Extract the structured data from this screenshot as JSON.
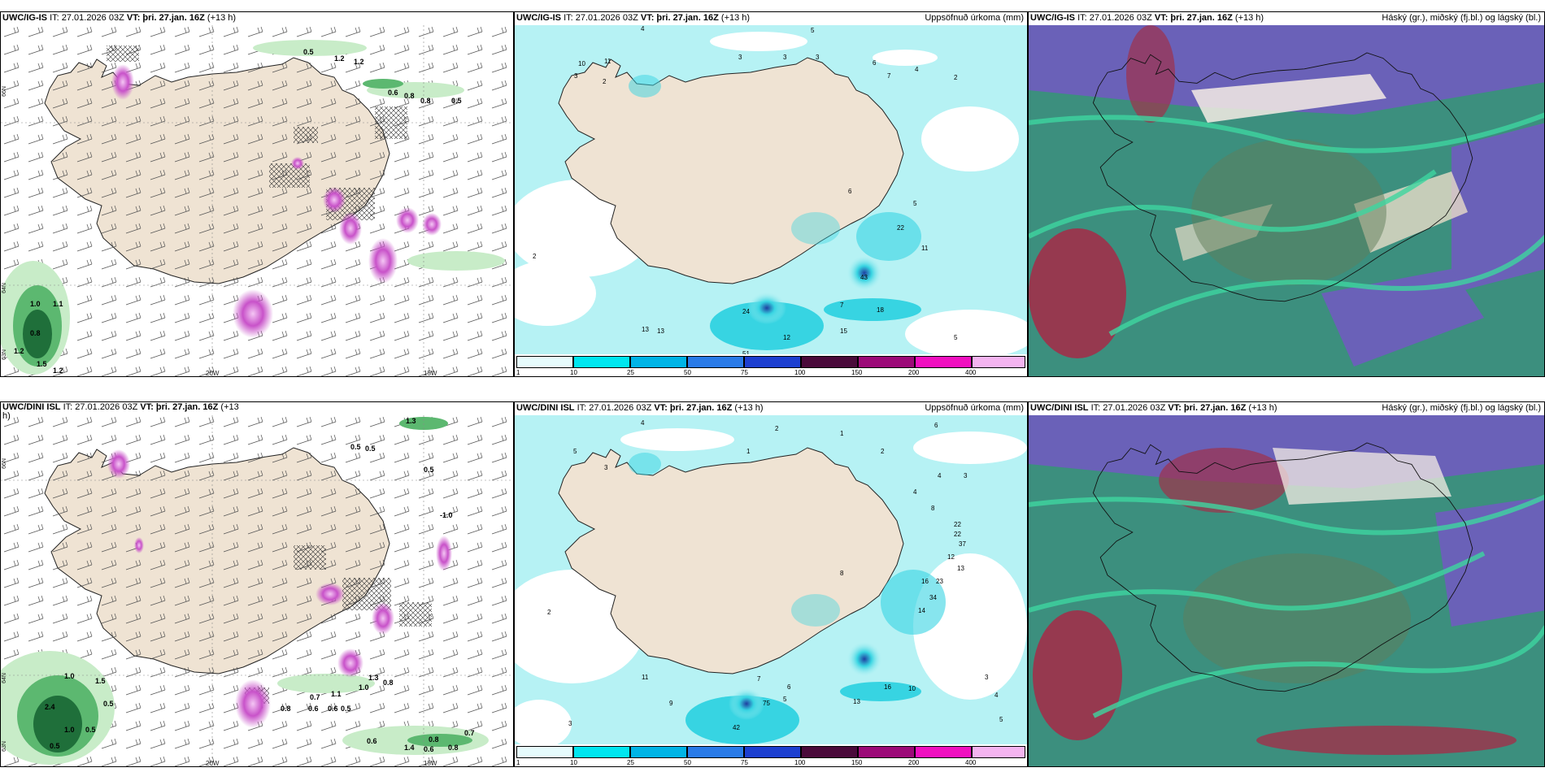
{
  "colors": {
    "land": "#efe3d3",
    "sea_bg": "#ffffff",
    "precip_light": "#b6f2f4",
    "precip_mid": "#37d4e2",
    "precip_purple": "#c852c9",
    "green_light": "#c8ecc8",
    "green_dark": "#1f6f3a",
    "cloud_purple": "#6a61b8",
    "cloud_teal": "#3c8f7e",
    "cloud_red": "#a0304a",
    "cloud_green": "#3ed6a0"
  },
  "axes": {
    "lon_left": "20W",
    "lon_right": "15W",
    "lat_top": "66N",
    "lat_mid": "64N",
    "lat_bottom": "63N"
  },
  "top": {
    "wind": {
      "model": "UWC/IG-IS",
      "it_label": "IT: 27.01.2026 03Z",
      "vt_label": "VT: þri. 27.jan. 16Z",
      "lead": "(+13 h)",
      "values": [
        "0.5",
        "1.2",
        "1.2",
        "0.6",
        "0.8",
        "0.8",
        "0.5",
        "1.0",
        "1.1",
        "0.8",
        "1.2",
        "1.5",
        "1.2"
      ]
    },
    "precip": {
      "model": "UWC/IG-IS",
      "it_label": "IT: 27.01.2026 03Z",
      "vt_label": "VT: þri. 27.jan. 16Z",
      "lead": "(+13 h)",
      "title": "Uppsöfnuð úrkoma (mm)",
      "values": [
        "4",
        "5",
        "3",
        "3",
        "3",
        "6",
        "7",
        "4",
        "2",
        "10",
        "11",
        "3",
        "2",
        "24",
        "18",
        "12",
        "13",
        "13",
        "51",
        "48",
        "43",
        "15",
        "11",
        "22",
        "7",
        "6",
        "5",
        "5",
        "2"
      ],
      "colorbar": [
        "1",
        "10",
        "25",
        "50",
        "75",
        "100",
        "150",
        "200",
        "400"
      ]
    },
    "cloud": {
      "model": "UWC/IG-IS",
      "it_label": "IT: 27.01.2026 03Z",
      "vt_label": "VT: þri. 27.jan. 16Z",
      "lead": "(+13 h)",
      "title": "Háský (gr.), miðský (fj.bl.) og lágský (bl.)"
    }
  },
  "bottom": {
    "wind": {
      "model": "UWC/DINI ISL",
      "it_label": "IT: 27.01.2026 03Z",
      "vt_label": "VT: þri. 27.jan. 16Z",
      "lead": "(+13",
      "lead2": "h)",
      "values": [
        "0.5",
        "0.5",
        "1.3",
        "0.5",
        "-1.0",
        "1.0",
        "1.5",
        "0.5",
        "2.4",
        "1.0",
        "0.5",
        "0.5",
        "0.8",
        "0.7",
        "0.6",
        "0.6",
        "0.5",
        "1.1",
        "1.0",
        "1.3",
        "0.8",
        "0.6",
        "1.4",
        "0.6",
        "0.8",
        "0.8",
        "0.7"
      ]
    },
    "precip": {
      "model": "UWC/DINI ISL",
      "it_label": "IT: 27.01.2026 03Z",
      "vt_label": "VT: þri. 27.jan. 16Z",
      "lead": "(+13 h)",
      "title": "Uppsöfnuð úrkoma (mm)",
      "values": [
        "4",
        "2",
        "1",
        "1",
        "5",
        "3",
        "2",
        "6",
        "4",
        "3",
        "4",
        "8",
        "22",
        "22",
        "37",
        "12",
        "13",
        "23",
        "34",
        "14",
        "16",
        "16",
        "10",
        "13",
        "42",
        "75",
        "8",
        "7",
        "6",
        "5",
        "11",
        "9",
        "3",
        "2",
        "3",
        "4",
        "5"
      ],
      "colorbar": [
        "1",
        "10",
        "25",
        "50",
        "75",
        "100",
        "150",
        "200",
        "400"
      ]
    },
    "cloud": {
      "model": "UWC/DINI ISL",
      "it_label": "IT: 27.01.2026 03Z",
      "vt_label": "VT: þri. 27.jan. 16Z",
      "lead": "(+13 h)",
      "title": "Háský (gr.), miðský (fj.bl.) og lágský (bl.)"
    }
  }
}
